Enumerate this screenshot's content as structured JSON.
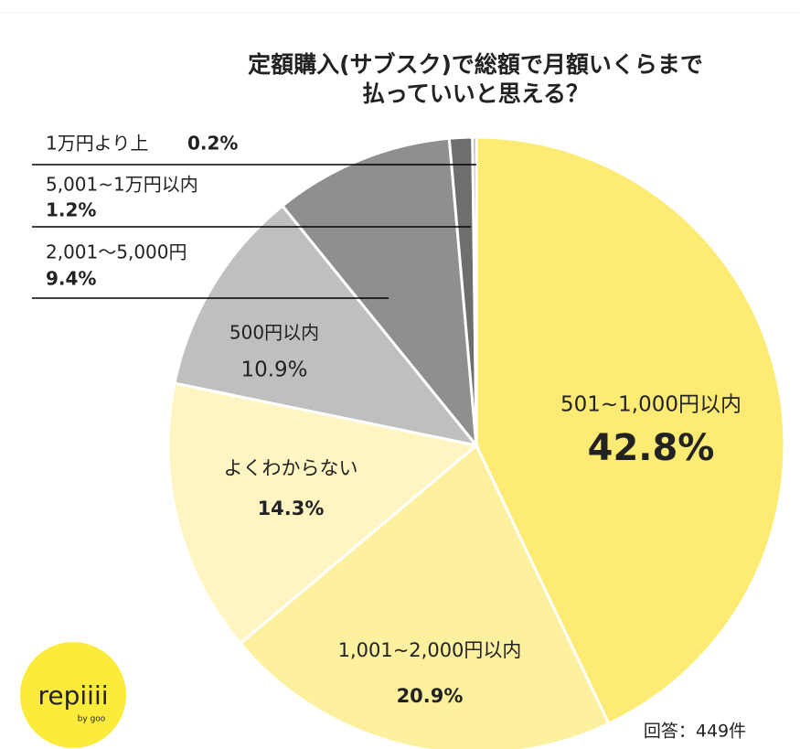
{
  "chart_data": {
    "type": "pie",
    "title": [
      "定額購入(サブスク)で総額で月額いくらまで",
      "払っていいと思える？"
    ],
    "categories": [
      "501~1,000円以内",
      "1,001~2,000円以内",
      "よくわからない",
      "500円以内",
      "2,001～5,000円",
      "5,001~1万円以内",
      "1万円より上"
    ],
    "values": [
      42.8,
      20.9,
      14.3,
      10.9,
      9.4,
      1.2,
      0.2
    ],
    "value_labels": [
      "42.8%",
      "20.9%",
      "14.3%",
      "10.9%",
      "9.4%",
      "1.2%",
      "0.2%"
    ],
    "colors": [
      "#fdeb74",
      "#fdf09e",
      "#fff5c2",
      "#bfbfbf",
      "#8f8f8f",
      "#6e6e6e",
      "#a6a6a6"
    ],
    "annotation": "回答：449件",
    "logo": {
      "name": "repiiii",
      "sub": "by goo"
    }
  }
}
